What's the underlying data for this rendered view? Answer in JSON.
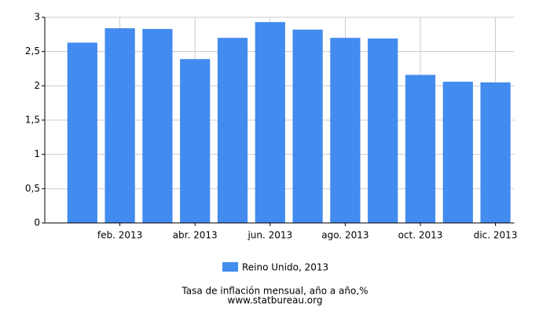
{
  "chart_data": {
    "type": "bar",
    "title": "Tasa de inflación mensual, año a año,%",
    "source": "www.statbureau.org",
    "categories": [
      null,
      "feb. 2013",
      null,
      "abr. 2013",
      null,
      "jun. 2013",
      null,
      "ago. 2013",
      null,
      "oct. 2013",
      null,
      "dic. 2013"
    ],
    "series": [
      {
        "name": "Reino Unido, 2013",
        "color": "#428bef",
        "values": [
          2.63,
          2.84,
          2.83,
          2.39,
          2.7,
          2.93,
          2.82,
          2.7,
          2.69,
          2.16,
          2.06,
          2.05
        ]
      }
    ],
    "ylim": [
      0,
      3
    ],
    "yticks": [
      0,
      {
        "value": 0.5,
        "label": "0,5"
      },
      1,
      {
        "value": 1.5,
        "label": "1,5"
      },
      2,
      {
        "value": 2.5,
        "label": "2,5"
      },
      3
    ],
    "grid": true
  }
}
